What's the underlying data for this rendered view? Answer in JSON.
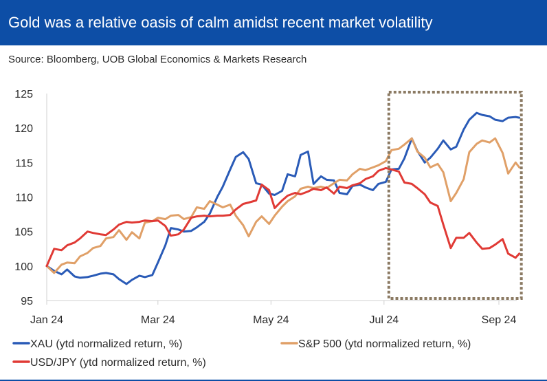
{
  "header": {
    "title": "Gold was a relative oasis of calm amidst recent market volatility",
    "source": "Source: Bloomberg, UOB Global Economics & Markets Research"
  },
  "colors": {
    "header_bg": "#0d4ea6",
    "xau": "#2a5bb7",
    "spx": "#e0a068",
    "usdjpy": "#e03a35",
    "highlight_box": "#8b7a63"
  },
  "chart_data": {
    "type": "line",
    "title": "",
    "xlabel": "",
    "ylabel": "",
    "ylim": [
      95,
      125
    ],
    "y_ticks": [
      95,
      100,
      105,
      110,
      115,
      120,
      125
    ],
    "x_ticks": [
      {
        "label": "Jan 24",
        "x": "2024-01-01"
      },
      {
        "label": "Mar 24",
        "x": "2024-03-01"
      },
      {
        "label": "May 24",
        "x": "2024-05-01"
      },
      {
        "label": "Jul 24",
        "x": "2024-07-01"
      },
      {
        "label": "Sep 24",
        "x": "2024-09-01"
      }
    ],
    "xlim": [
      "2024-01-01",
      "2024-09-12"
    ],
    "highlight": {
      "from": "2024-07-01",
      "to": "2024-09-12",
      "ylim": [
        95,
        125
      ],
      "style": "dotted box"
    },
    "legend_position": "bottom",
    "series": [
      {
        "name": "XAU (ytd normalized return, %)",
        "color": "#2a5bb7",
        "points": [
          [
            "2024-01-01",
            100
          ],
          [
            "2024-01-05",
            99.3
          ],
          [
            "2024-01-09",
            98.8
          ],
          [
            "2024-01-12",
            99.5
          ],
          [
            "2024-01-16",
            98.5
          ],
          [
            "2024-01-19",
            98.3
          ],
          [
            "2024-01-23",
            98.4
          ],
          [
            "2024-01-26",
            98.6
          ],
          [
            "2024-01-30",
            98.9
          ],
          [
            "2024-02-02",
            99.0
          ],
          [
            "2024-02-06",
            98.8
          ],
          [
            "2024-02-09",
            98.1
          ],
          [
            "2024-02-13",
            97.4
          ],
          [
            "2024-02-16",
            98.0
          ],
          [
            "2024-02-20",
            98.6
          ],
          [
            "2024-02-23",
            98.4
          ],
          [
            "2024-02-27",
            98.7
          ],
          [
            "2024-03-01",
            100.5
          ],
          [
            "2024-03-05",
            103.0
          ],
          [
            "2024-03-08",
            105.5
          ],
          [
            "2024-03-12",
            105.3
          ],
          [
            "2024-03-15",
            105.0
          ],
          [
            "2024-03-19",
            105.1
          ],
          [
            "2024-03-22",
            105.6
          ],
          [
            "2024-03-26",
            106.4
          ],
          [
            "2024-03-29",
            107.6
          ],
          [
            "2024-04-02",
            110.0
          ],
          [
            "2024-04-05",
            111.5
          ],
          [
            "2024-04-09",
            114.0
          ],
          [
            "2024-04-12",
            115.8
          ],
          [
            "2024-04-16",
            116.5
          ],
          [
            "2024-04-19",
            115.5
          ],
          [
            "2024-04-23",
            112.0
          ],
          [
            "2024-04-26",
            111.8
          ],
          [
            "2024-04-30",
            110.5
          ],
          [
            "2024-05-03",
            110.3
          ],
          [
            "2024-05-07",
            110.9
          ],
          [
            "2024-05-10",
            113.3
          ],
          [
            "2024-05-14",
            113.0
          ],
          [
            "2024-05-17",
            116.1
          ],
          [
            "2024-05-21",
            116.6
          ],
          [
            "2024-05-24",
            111.9
          ],
          [
            "2024-05-28",
            113.0
          ],
          [
            "2024-05-31",
            112.5
          ],
          [
            "2024-06-04",
            112.4
          ],
          [
            "2024-06-07",
            110.6
          ],
          [
            "2024-06-11",
            110.4
          ],
          [
            "2024-06-14",
            111.6
          ],
          [
            "2024-06-18",
            111.8
          ],
          [
            "2024-06-21",
            111.4
          ],
          [
            "2024-06-25",
            111.0
          ],
          [
            "2024-06-28",
            111.9
          ],
          [
            "2024-07-02",
            112.2
          ],
          [
            "2024-07-05",
            114.0
          ],
          [
            "2024-07-09",
            114.1
          ],
          [
            "2024-07-12",
            115.6
          ],
          [
            "2024-07-16",
            118.5
          ],
          [
            "2024-07-19",
            116.7
          ],
          [
            "2024-07-23",
            115.0
          ],
          [
            "2024-07-26",
            115.7
          ],
          [
            "2024-07-30",
            117.0
          ],
          [
            "2024-08-02",
            118.2
          ],
          [
            "2024-08-06",
            116.9
          ],
          [
            "2024-08-09",
            117.3
          ],
          [
            "2024-08-13",
            119.8
          ],
          [
            "2024-08-16",
            121.2
          ],
          [
            "2024-08-20",
            122.2
          ],
          [
            "2024-08-23",
            121.9
          ],
          [
            "2024-08-27",
            121.7
          ],
          [
            "2024-08-30",
            121.2
          ],
          [
            "2024-09-03",
            121.0
          ],
          [
            "2024-09-06",
            121.5
          ],
          [
            "2024-09-10",
            121.6
          ],
          [
            "2024-09-12",
            121.5
          ]
        ]
      },
      {
        "name": "S&P 500 (ytd normalized return, %)",
        "color": "#e0a068",
        "points": [
          [
            "2024-01-01",
            100
          ],
          [
            "2024-01-05",
            99.0
          ],
          [
            "2024-01-09",
            100.2
          ],
          [
            "2024-01-12",
            100.5
          ],
          [
            "2024-01-16",
            100.4
          ],
          [
            "2024-01-19",
            101.4
          ],
          [
            "2024-01-23",
            101.9
          ],
          [
            "2024-01-26",
            102.6
          ],
          [
            "2024-01-30",
            102.9
          ],
          [
            "2024-02-02",
            104.0
          ],
          [
            "2024-02-06",
            104.2
          ],
          [
            "2024-02-09",
            105.2
          ],
          [
            "2024-02-13",
            103.8
          ],
          [
            "2024-02-16",
            104.9
          ],
          [
            "2024-02-20",
            104.0
          ],
          [
            "2024-02-23",
            106.3
          ],
          [
            "2024-02-27",
            106.5
          ],
          [
            "2024-03-01",
            107.0
          ],
          [
            "2024-03-05",
            106.8
          ],
          [
            "2024-03-08",
            107.3
          ],
          [
            "2024-03-12",
            107.4
          ],
          [
            "2024-03-15",
            106.8
          ],
          [
            "2024-03-19",
            107.1
          ],
          [
            "2024-03-22",
            108.5
          ],
          [
            "2024-03-26",
            108.3
          ],
          [
            "2024-03-29",
            109.4
          ],
          [
            "2024-04-02",
            108.9
          ],
          [
            "2024-04-05",
            108.5
          ],
          [
            "2024-04-09",
            108.9
          ],
          [
            "2024-04-12",
            107.3
          ],
          [
            "2024-04-16",
            105.9
          ],
          [
            "2024-04-19",
            104.3
          ],
          [
            "2024-04-23",
            106.4
          ],
          [
            "2024-04-26",
            107.2
          ],
          [
            "2024-04-30",
            106.1
          ],
          [
            "2024-05-03",
            107.3
          ],
          [
            "2024-05-07",
            108.6
          ],
          [
            "2024-05-10",
            109.4
          ],
          [
            "2024-05-14",
            110.1
          ],
          [
            "2024-05-17",
            111.2
          ],
          [
            "2024-05-21",
            111.5
          ],
          [
            "2024-05-24",
            111.3
          ],
          [
            "2024-05-28",
            111.5
          ],
          [
            "2024-05-31",
            111.3
          ],
          [
            "2024-06-04",
            112.0
          ],
          [
            "2024-06-07",
            112.5
          ],
          [
            "2024-06-11",
            112.4
          ],
          [
            "2024-06-14",
            113.3
          ],
          [
            "2024-06-18",
            114.1
          ],
          [
            "2024-06-21",
            113.9
          ],
          [
            "2024-06-25",
            114.3
          ],
          [
            "2024-06-28",
            114.6
          ],
          [
            "2024-07-02",
            115.2
          ],
          [
            "2024-07-05",
            116.8
          ],
          [
            "2024-07-09",
            117.0
          ],
          [
            "2024-07-12",
            117.6
          ],
          [
            "2024-07-16",
            118.5
          ],
          [
            "2024-07-19",
            116.6
          ],
          [
            "2024-07-23",
            115.7
          ],
          [
            "2024-07-26",
            114.3
          ],
          [
            "2024-07-30",
            114.8
          ],
          [
            "2024-08-02",
            113.6
          ],
          [
            "2024-08-06",
            109.4
          ],
          [
            "2024-08-09",
            110.6
          ],
          [
            "2024-08-13",
            112.6
          ],
          [
            "2024-08-16",
            116.5
          ],
          [
            "2024-08-20",
            117.7
          ],
          [
            "2024-08-23",
            118.2
          ],
          [
            "2024-08-27",
            117.9
          ],
          [
            "2024-08-30",
            118.5
          ],
          [
            "2024-09-03",
            116.4
          ],
          [
            "2024-09-06",
            113.4
          ],
          [
            "2024-09-10",
            115.0
          ],
          [
            "2024-09-12",
            114.3
          ]
        ]
      },
      {
        "name": "USD/JPY (ytd normalized return, %)",
        "color": "#e03a35",
        "points": [
          [
            "2024-01-01",
            100
          ],
          [
            "2024-01-05",
            102.5
          ],
          [
            "2024-01-09",
            102.3
          ],
          [
            "2024-01-12",
            103.0
          ],
          [
            "2024-01-16",
            103.4
          ],
          [
            "2024-01-19",
            104.0
          ],
          [
            "2024-01-23",
            105.0
          ],
          [
            "2024-01-26",
            104.8
          ],
          [
            "2024-01-30",
            104.6
          ],
          [
            "2024-02-02",
            104.5
          ],
          [
            "2024-02-06",
            105.3
          ],
          [
            "2024-02-09",
            106.0
          ],
          [
            "2024-02-13",
            106.4
          ],
          [
            "2024-02-16",
            106.3
          ],
          [
            "2024-02-20",
            106.4
          ],
          [
            "2024-02-23",
            106.6
          ],
          [
            "2024-02-27",
            106.5
          ],
          [
            "2024-03-01",
            106.6
          ],
          [
            "2024-03-05",
            105.8
          ],
          [
            "2024-03-08",
            104.4
          ],
          [
            "2024-03-12",
            104.6
          ],
          [
            "2024-03-15",
            105.3
          ],
          [
            "2024-03-19",
            107.0
          ],
          [
            "2024-03-22",
            107.2
          ],
          [
            "2024-03-26",
            107.3
          ],
          [
            "2024-03-29",
            107.2
          ],
          [
            "2024-04-02",
            107.3
          ],
          [
            "2024-04-05",
            107.3
          ],
          [
            "2024-04-09",
            107.4
          ],
          [
            "2024-04-12",
            108.2
          ],
          [
            "2024-04-16",
            109.0
          ],
          [
            "2024-04-19",
            109.2
          ],
          [
            "2024-04-23",
            109.5
          ],
          [
            "2024-04-26",
            111.8
          ],
          [
            "2024-04-30",
            111.0
          ],
          [
            "2024-05-03",
            108.4
          ],
          [
            "2024-05-07",
            109.5
          ],
          [
            "2024-05-10",
            110.2
          ],
          [
            "2024-05-14",
            110.6
          ],
          [
            "2024-05-17",
            110.4
          ],
          [
            "2024-05-21",
            110.8
          ],
          [
            "2024-05-24",
            111.2
          ],
          [
            "2024-05-28",
            111.0
          ],
          [
            "2024-05-31",
            111.4
          ],
          [
            "2024-06-04",
            110.5
          ],
          [
            "2024-06-07",
            111.5
          ],
          [
            "2024-06-11",
            111.3
          ],
          [
            "2024-06-14",
            111.7
          ],
          [
            "2024-06-18",
            112.0
          ],
          [
            "2024-06-21",
            112.6
          ],
          [
            "2024-06-25",
            113.0
          ],
          [
            "2024-06-28",
            113.8
          ],
          [
            "2024-07-02",
            114.2
          ],
          [
            "2024-07-05",
            114.0
          ],
          [
            "2024-07-09",
            113.7
          ],
          [
            "2024-07-12",
            112.1
          ],
          [
            "2024-07-16",
            111.9
          ],
          [
            "2024-07-19",
            111.3
          ],
          [
            "2024-07-23",
            110.4
          ],
          [
            "2024-07-26",
            109.2
          ],
          [
            "2024-07-30",
            108.7
          ],
          [
            "2024-08-02",
            106.0
          ],
          [
            "2024-08-06",
            102.6
          ],
          [
            "2024-08-09",
            104.1
          ],
          [
            "2024-08-13",
            104.1
          ],
          [
            "2024-08-16",
            104.8
          ],
          [
            "2024-08-20",
            103.4
          ],
          [
            "2024-08-23",
            102.5
          ],
          [
            "2024-08-27",
            102.6
          ],
          [
            "2024-08-30",
            103.1
          ],
          [
            "2024-09-03",
            103.9
          ],
          [
            "2024-09-06",
            101.8
          ],
          [
            "2024-09-10",
            101.2
          ],
          [
            "2024-09-12",
            101.8
          ]
        ]
      }
    ]
  }
}
